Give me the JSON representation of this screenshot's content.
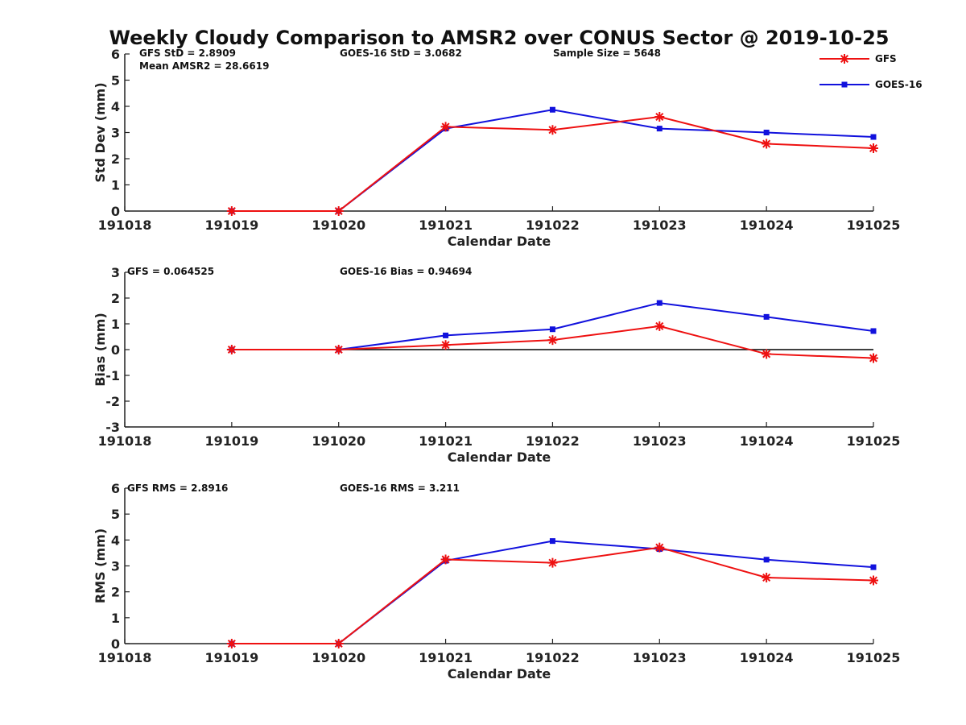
{
  "title": "Weekly Cloudy Comparison to AMSR2 over CONUS Sector @ 2019-10-25",
  "colors": {
    "gfs": "#ee1111",
    "goes": "#1111dd",
    "axis": "#222222",
    "zero": "#000000"
  },
  "legend": [
    {
      "name": "GFS",
      "marker": "star"
    },
    {
      "name": "GOES-16",
      "marker": "square"
    }
  ],
  "chart_data": [
    {
      "type": "line",
      "ylabel": "Std Dev (mm)",
      "xlabel": "Calendar Date",
      "categories": [
        "191018",
        "191019",
        "191020",
        "191021",
        "191022",
        "191023",
        "191024",
        "191025"
      ],
      "ylim": [
        0,
        6
      ],
      "yticks": [
        "0",
        "1",
        "2",
        "3",
        "4",
        "5",
        "6"
      ],
      "zero_line": false,
      "annotations": [
        "GFS StD = 2.8909",
        "Mean AMSR2 = 28.6619",
        "GOES-16 StD = 3.0682",
        "Sample Size = 5648"
      ],
      "series": [
        {
          "name": "GFS",
          "x": [
            1,
            2,
            3,
            4,
            5,
            6,
            7
          ],
          "values": [
            0,
            0,
            3.22,
            3.1,
            3.6,
            2.57,
            2.4
          ]
        },
        {
          "name": "GOES-16",
          "x": [
            1,
            2,
            3,
            4,
            5,
            6,
            7
          ],
          "values": [
            0,
            0,
            3.15,
            3.87,
            3.15,
            3.0,
            2.83
          ]
        }
      ]
    },
    {
      "type": "line",
      "ylabel": "Bias (mm)",
      "xlabel": "Calendar Date",
      "categories": [
        "191018",
        "191019",
        "191020",
        "191021",
        "191022",
        "191023",
        "191024",
        "191025"
      ],
      "ylim": [
        -3,
        3
      ],
      "yticks": [
        "-3",
        "-2",
        "-1",
        "0",
        "1",
        "2",
        "3"
      ],
      "zero_line": true,
      "annotations": [
        "GFS = 0.064525",
        "GOES-16 Bias  = 0.94694"
      ],
      "series": [
        {
          "name": "GFS",
          "x": [
            1,
            2,
            3,
            4,
            5,
            6,
            7
          ],
          "values": [
            0,
            0,
            0.18,
            0.37,
            0.91,
            -0.17,
            -0.33
          ]
        },
        {
          "name": "GOES-16",
          "x": [
            1,
            2,
            3,
            4,
            5,
            6,
            7
          ],
          "values": [
            0,
            0,
            0.55,
            0.79,
            1.81,
            1.27,
            0.72
          ]
        }
      ]
    },
    {
      "type": "line",
      "ylabel": "RMS (mm)",
      "xlabel": "Calendar Date",
      "categories": [
        "191018",
        "191019",
        "191020",
        "191021",
        "191022",
        "191023",
        "191024",
        "191025"
      ],
      "ylim": [
        0,
        6
      ],
      "yticks": [
        "0",
        "1",
        "2",
        "3",
        "4",
        "5",
        "6"
      ],
      "zero_line": false,
      "annotations": [
        "GFS RMS = 2.8916",
        "GOES-16 RMS = 3.211"
      ],
      "series": [
        {
          "name": "GFS",
          "x": [
            1,
            2,
            3,
            4,
            5,
            6,
            7
          ],
          "values": [
            0,
            0,
            3.25,
            3.12,
            3.71,
            2.55,
            2.44
          ]
        },
        {
          "name": "GOES-16",
          "x": [
            1,
            2,
            3,
            4,
            5,
            6,
            7
          ],
          "values": [
            0,
            0,
            3.2,
            3.96,
            3.65,
            3.24,
            2.95
          ]
        }
      ]
    }
  ]
}
